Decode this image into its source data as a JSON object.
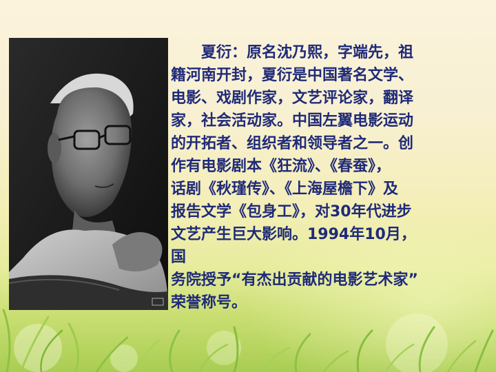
{
  "slide": {
    "lines": [
      "夏衍：原名沈乃熙，字端先，祖",
      "籍河南开封，夏衍是中国著名文学、",
      "电影、戏剧作家，文艺评论家，翻译",
      "家，社会活动家。中国左翼电影运动",
      "的开拓者、组织者和领导者之一。创",
      "作有电影剧本《狂流》、《春蚕》，",
      "话剧《秋瑾传》、《上海屋檐下》及",
      "报告文学《包身工》，对30年代进步",
      "文艺产生巨大影响。1994年10月，",
      "国",
      "务院授予“有杰出贡献的电影艺术家”",
      "荣誉称号。"
    ],
    "colors": {
      "text": "#1f2a78",
      "background_top": "#fbf3dc",
      "background_bottom": "#a9cd52"
    }
  }
}
